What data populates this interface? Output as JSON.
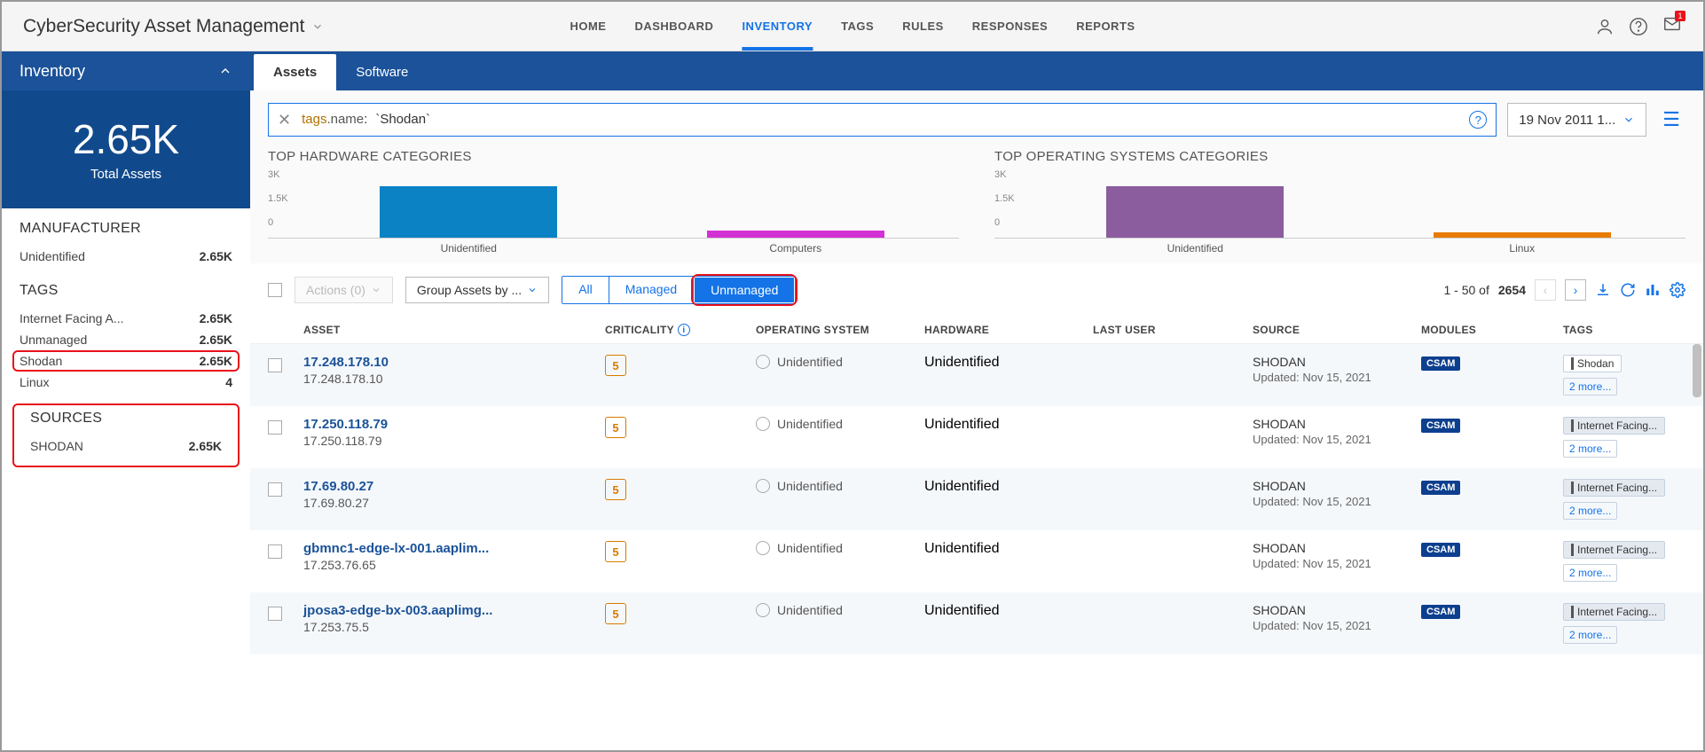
{
  "app_title": "CyberSecurity Asset Management",
  "topnav": [
    "HOME",
    "DASHBOARD",
    "INVENTORY",
    "TAGS",
    "RULES",
    "RESPONSES",
    "REPORTS"
  ],
  "topnav_active": 2,
  "mail_badge": "1",
  "sidebar": {
    "title": "Inventory",
    "hero_value": "2.65K",
    "hero_label": "Total Assets",
    "manufacturer": {
      "title": "MANUFACTURER",
      "rows": [
        {
          "label": "Unidentified",
          "value": "2.65K"
        }
      ]
    },
    "tags": {
      "title": "TAGS",
      "rows": [
        {
          "label": "Internet Facing A...",
          "value": "2.65K"
        },
        {
          "label": "Unmanaged",
          "value": "2.65K"
        },
        {
          "label": "Shodan",
          "value": "2.65K",
          "highlight": true
        },
        {
          "label": "Linux",
          "value": "4"
        }
      ]
    },
    "sources": {
      "title": "SOURCES",
      "rows": [
        {
          "label": "SHODAN",
          "value": "2.65K"
        }
      ],
      "highlight": true
    }
  },
  "tabs": [
    "Assets",
    "Software"
  ],
  "tabs_active": 0,
  "search": {
    "field": "tags",
    "prop": ".name",
    "op": ":",
    "value": "`Shodan`"
  },
  "date_filter": "19 Nov 2011 1...",
  "chart1": {
    "title": "TOP HARDWARE CATEGORIES",
    "ylabels": [
      "3K",
      "1.5K",
      "0"
    ],
    "bars": [
      {
        "label": "Unidentified",
        "height": 58,
        "color": "#0b82c4"
      },
      {
        "label": "Computers",
        "height": 8,
        "color": "#d431d4"
      }
    ]
  },
  "chart2": {
    "title": "TOP OPERATING SYSTEMS CATEGORIES",
    "ylabels": [
      "3K",
      "1.5K",
      "0"
    ],
    "bars": [
      {
        "label": "Unidentified",
        "height": 58,
        "color": "#8b5c9e"
      },
      {
        "label": "Linux",
        "height": 6,
        "color": "#e87b00"
      }
    ]
  },
  "toolbar": {
    "actions": "Actions (0)",
    "group": "Group Assets by ...",
    "seg": [
      "All",
      "Managed",
      "Unmanaged"
    ],
    "seg_active": 2,
    "range": "1 - 50 of",
    "total": "2654"
  },
  "columns": [
    "ASSET",
    "CRITICALITY",
    "OPERATING SYSTEM",
    "HARDWARE",
    "LAST USER",
    "SOURCE",
    "MODULES",
    "TAGS"
  ],
  "rows": [
    {
      "name": "17.248.178.10",
      "sub": "17.248.178.10",
      "crit": "5",
      "os": "Unidentified",
      "hw": "Unidentified",
      "user": "",
      "src": "SHODAN",
      "src_sub": "Updated: Nov 15, 2021",
      "mod": "CSAM",
      "tag": "Shodan",
      "tag_simple": true,
      "more": "2 more..."
    },
    {
      "name": "17.250.118.79",
      "sub": "17.250.118.79",
      "crit": "5",
      "os": "Unidentified",
      "hw": "Unidentified",
      "user": "",
      "src": "SHODAN",
      "src_sub": "Updated: Nov 15, 2021",
      "mod": "CSAM",
      "tag": "Internet Facing...",
      "more": "2 more..."
    },
    {
      "name": "17.69.80.27",
      "sub": "17.69.80.27",
      "crit": "5",
      "os": "Unidentified",
      "hw": "Unidentified",
      "user": "",
      "src": "SHODAN",
      "src_sub": "Updated: Nov 15, 2021",
      "mod": "CSAM",
      "tag": "Internet Facing...",
      "more": "2 more..."
    },
    {
      "name": "gbmnc1-edge-lx-001.aaplim...",
      "sub": "17.253.76.65",
      "crit": "5",
      "os": "Unidentified",
      "hw": "Unidentified",
      "user": "",
      "src": "SHODAN",
      "src_sub": "Updated: Nov 15, 2021",
      "mod": "CSAM",
      "tag": "Internet Facing...",
      "more": "2 more..."
    },
    {
      "name": "jposa3-edge-bx-003.aaplimg...",
      "sub": "17.253.75.5",
      "crit": "5",
      "os": "Unidentified",
      "hw": "Unidentified",
      "user": "",
      "src": "SHODAN",
      "src_sub": "Updated: Nov 15, 2021",
      "mod": "CSAM",
      "tag": "Internet Facing...",
      "more": "2 more..."
    }
  ]
}
